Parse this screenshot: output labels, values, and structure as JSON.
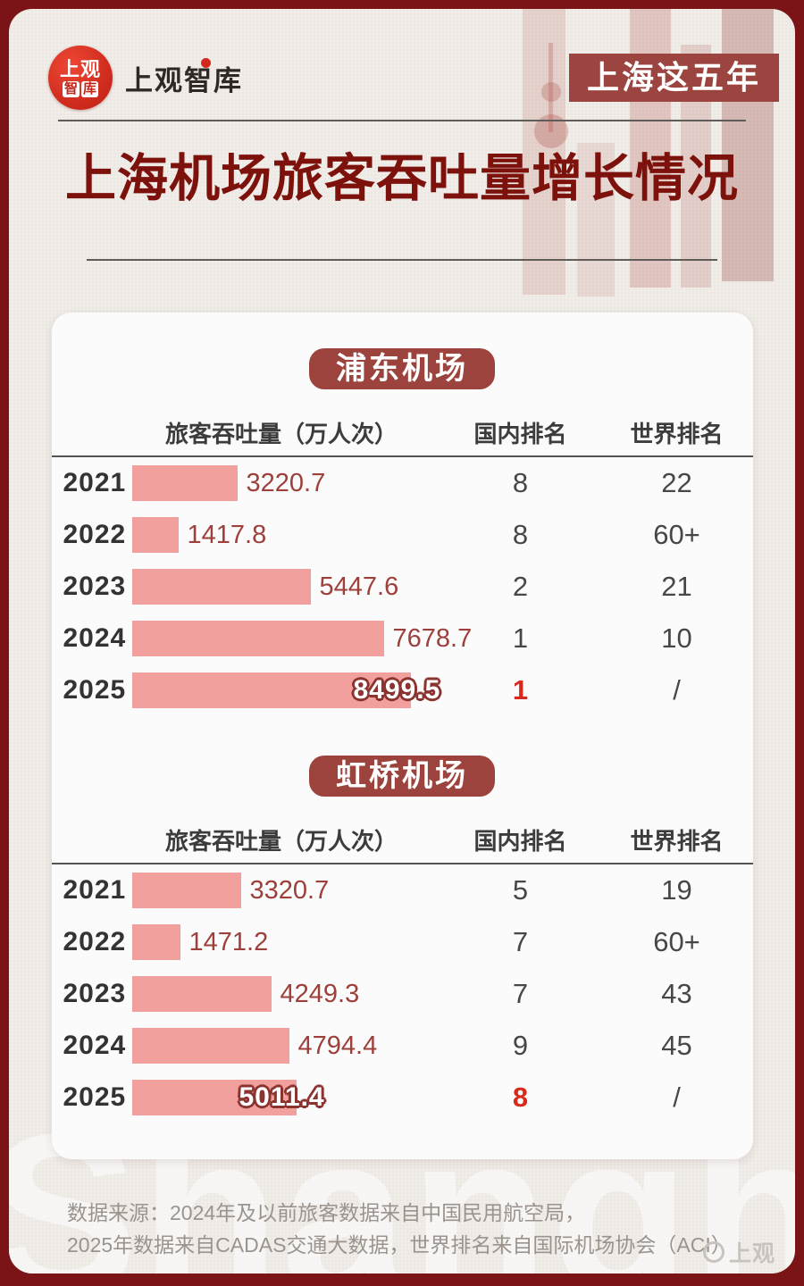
{
  "brand": {
    "badge_top": "上观",
    "badge_chip1": "智",
    "badge_chip2": "库",
    "wordmark": "上观智库",
    "corner_mark": "上观"
  },
  "header": {
    "tag": "上海这五年",
    "title": "上海机场旅客吞吐量增长情况"
  },
  "watermark": "Shanghai",
  "tables": [
    {
      "title": "浦东机场",
      "columns": [
        "旅客吞吐量（万人次）",
        "国内排名",
        "世界排名"
      ],
      "rows": [
        {
          "year": "2021",
          "value": 3220.7,
          "value_label": "3220.7",
          "domestic": "8",
          "world": "22"
        },
        {
          "year": "2022",
          "value": 1417.8,
          "value_label": "1417.8",
          "domestic": "8",
          "world": "60+"
        },
        {
          "year": "2023",
          "value": 5447.6,
          "value_label": "5447.6",
          "domestic": "2",
          "world": "21"
        },
        {
          "year": "2024",
          "value": 7678.7,
          "value_label": "7678.7",
          "domestic": "1",
          "world": "10"
        },
        {
          "year": "2025",
          "value": 8499.5,
          "value_label": "8499.5",
          "domestic": "1",
          "world": "/"
        }
      ]
    },
    {
      "title": "虹桥机场",
      "columns": [
        "旅客吞吐量（万人次）",
        "国内排名",
        "世界排名"
      ],
      "rows": [
        {
          "year": "2021",
          "value": 3320.7,
          "value_label": "3320.7",
          "domestic": "5",
          "world": "19"
        },
        {
          "year": "2022",
          "value": 1471.2,
          "value_label": "1471.2",
          "domestic": "7",
          "world": "60+"
        },
        {
          "year": "2023",
          "value": 4249.3,
          "value_label": "4249.3",
          "domestic": "7",
          "world": "43"
        },
        {
          "year": "2024",
          "value": 4794.4,
          "value_label": "4794.4",
          "domestic": "9",
          "world": "45"
        },
        {
          "year": "2025",
          "value": 5011.4,
          "value_label": "5011.4",
          "domestic": "8",
          "world": "/"
        }
      ]
    }
  ],
  "footer": {
    "line1": "数据来源：2024年及以前旅客数据来自中国民用航空局，",
    "line2": "2025年数据来自CADAS交通大数据，世界排名来自国际机场协会（ACI）"
  },
  "colors": {
    "frame": "#7a1417",
    "panel": "#f0ece8",
    "title_red": "#7d120c",
    "pill_red": "#9c433d",
    "bar_salmon": "#f2a09e",
    "value_red": "#9d3f3a",
    "highlight_red": "#d9291c"
  },
  "chart_data": [
    {
      "type": "bar",
      "orientation": "horizontal",
      "title": "浦东机场",
      "value_label": "旅客吞吐量（万人次）",
      "categories": [
        "2021",
        "2022",
        "2023",
        "2024",
        "2025"
      ],
      "values": [
        3220.7,
        1417.8,
        5447.6,
        7678.7,
        8499.5
      ],
      "domestic_rank": [
        "8",
        "8",
        "2",
        "1",
        "1"
      ],
      "world_rank": [
        "22",
        "60+",
        "21",
        "10",
        "/"
      ],
      "xlim": [
        0,
        8500
      ],
      "grid": false,
      "highlight_index": 4,
      "bar_color": "#f2a09e"
    },
    {
      "type": "bar",
      "orientation": "horizontal",
      "title": "虹桥机场",
      "value_label": "旅客吞吐量（万人次）",
      "categories": [
        "2021",
        "2022",
        "2023",
        "2024",
        "2025"
      ],
      "values": [
        3320.7,
        1471.2,
        4249.3,
        4794.4,
        5011.4
      ],
      "domestic_rank": [
        "5",
        "7",
        "7",
        "9",
        "8"
      ],
      "world_rank": [
        "19",
        "60+",
        "43",
        "45",
        "/"
      ],
      "xlim": [
        0,
        8500
      ],
      "grid": false,
      "highlight_index": 4,
      "bar_color": "#f2a09e"
    }
  ]
}
